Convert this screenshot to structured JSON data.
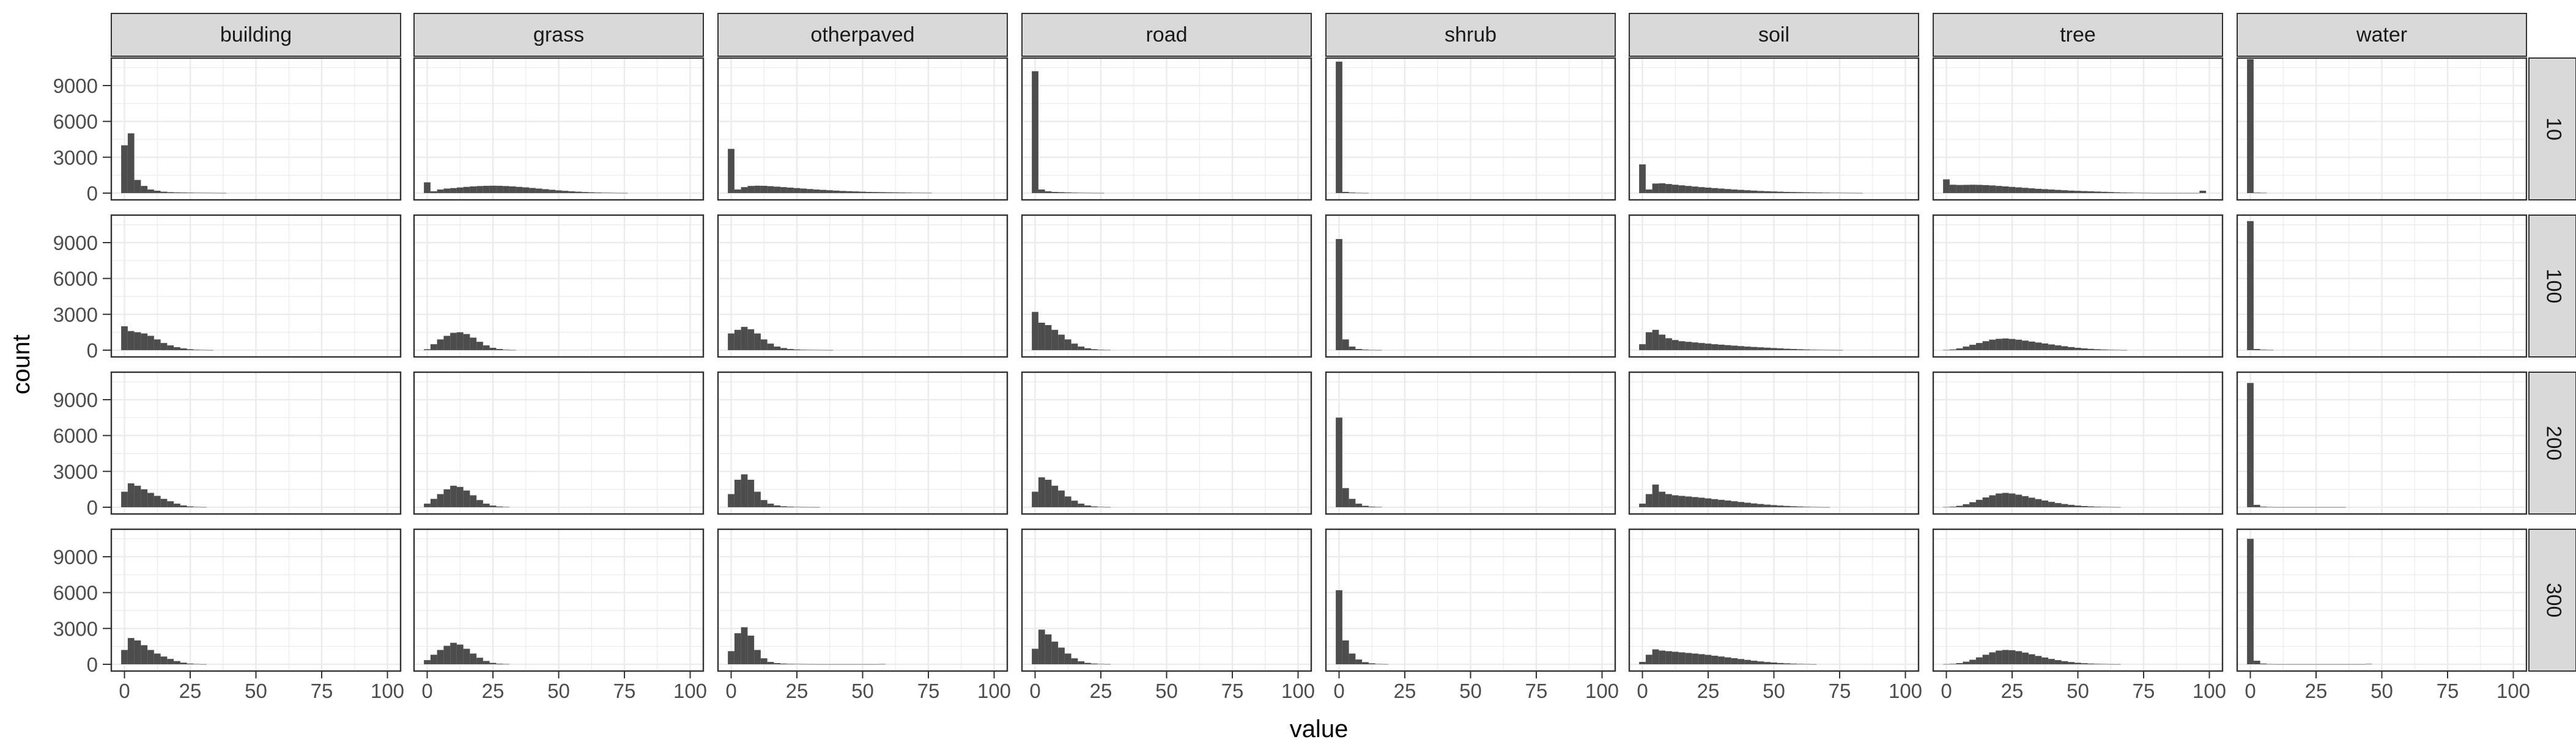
{
  "chart_data": {
    "type": "histogram-facet-grid",
    "xlabel": "value",
    "ylabel": "count",
    "xlim": [
      0,
      100
    ],
    "ylim": [
      0,
      11300
    ],
    "x_ticks": [
      0,
      25,
      50,
      75,
      100
    ],
    "y_ticks": [
      0,
      3000,
      6000,
      9000
    ],
    "bin_width": 2.5,
    "grid": true,
    "bar_color": "#4d4d4d",
    "strip_color": "#d9d9d9",
    "panel_grid_color": "#ebebeb",
    "columns": [
      "building",
      "grass",
      "otherpaved",
      "road",
      "shrub",
      "soil",
      "tree",
      "water"
    ],
    "rows": [
      "10",
      "100",
      "200",
      "300"
    ],
    "panels": {
      "10": {
        "building": [
          4000,
          5000,
          1100,
          600,
          300,
          200,
          120,
          80,
          60,
          50,
          40,
          30,
          25,
          20,
          15,
          10
        ],
        "grass": [
          900,
          150,
          300,
          380,
          420,
          470,
          520,
          560,
          590,
          610,
          620,
          610,
          590,
          560,
          520,
          480,
          430,
          380,
          330,
          280,
          230,
          190,
          150,
          120,
          90,
          70,
          50,
          35,
          25,
          15,
          10
        ],
        "otherpaved": [
          3700,
          300,
          500,
          600,
          620,
          610,
          580,
          540,
          500,
          460,
          420,
          380,
          340,
          300,
          270,
          240,
          210,
          180,
          160,
          140,
          120,
          100,
          90,
          80,
          70,
          60,
          50,
          40,
          30,
          25,
          20
        ],
        "road": [
          10200,
          300,
          150,
          100,
          80,
          60,
          40,
          30,
          20,
          15,
          10
        ],
        "shrub": [
          11000,
          100,
          50,
          20,
          10
        ],
        "soil": [
          2400,
          300,
          800,
          820,
          760,
          700,
          650,
          600,
          550,
          500,
          460,
          420,
          380,
          340,
          300,
          270,
          240,
          210,
          180,
          160,
          140,
          120,
          100,
          90,
          80,
          70,
          60,
          50,
          40,
          30,
          25,
          20,
          15,
          10
        ],
        "tree": [
          1150,
          700,
          680,
          690,
          700,
          690,
          670,
          640,
          600,
          560,
          520,
          480,
          440,
          400,
          360,
          330,
          300,
          270,
          240,
          210,
          190,
          170,
          150,
          130,
          110,
          90,
          70,
          50,
          40,
          30,
          20,
          15,
          10,
          10,
          10,
          10,
          10,
          10,
          10,
          200
        ],
        "water": [
          11200,
          40,
          20
        ]
      },
      "100": {
        "building": [
          2000,
          1600,
          1500,
          1400,
          1200,
          900,
          600,
          400,
          250,
          150,
          80,
          40,
          20,
          10
        ],
        "grass": [
          80,
          500,
          900,
          1200,
          1450,
          1500,
          1350,
          1050,
          700,
          400,
          200,
          100,
          40,
          15
        ],
        "otherpaved": [
          1400,
          1700,
          1950,
          1750,
          1400,
          900,
          550,
          300,
          180,
          100,
          60,
          40,
          30,
          20,
          15,
          10
        ],
        "road": [
          3200,
          2300,
          2100,
          1700,
          1300,
          900,
          550,
          300,
          160,
          80,
          40,
          20
        ],
        "shrub": [
          9300,
          900,
          300,
          100,
          50,
          20,
          10
        ],
        "soil": [
          500,
          1500,
          1700,
          1300,
          1000,
          850,
          750,
          700,
          650,
          600,
          550,
          500,
          460,
          420,
          380,
          340,
          300,
          270,
          240,
          210,
          180,
          150,
          120,
          100,
          80,
          60,
          40,
          30,
          20,
          15,
          10
        ],
        "tree": [
          20,
          60,
          150,
          300,
          450,
          600,
          750,
          880,
          950,
          980,
          940,
          880,
          800,
          720,
          640,
          560,
          480,
          400,
          330,
          260,
          200,
          150,
          110,
          80,
          55,
          35,
          20,
          10
        ],
        "water": [
          10800,
          100,
          40,
          20
        ]
      },
      "200": {
        "building": [
          1300,
          2000,
          1800,
          1500,
          1200,
          950,
          700,
          500,
          300,
          150,
          70,
          30,
          15
        ],
        "grass": [
          300,
          700,
          1100,
          1500,
          1800,
          1700,
          1400,
          1000,
          600,
          300,
          140,
          60,
          25
        ],
        "otherpaved": [
          1100,
          2300,
          2750,
          2300,
          1300,
          600,
          300,
          150,
          80,
          50,
          30,
          20,
          15,
          10
        ],
        "road": [
          1300,
          2500,
          2300,
          1800,
          1400,
          900,
          550,
          300,
          150,
          70,
          30,
          15
        ],
        "shrub": [
          7500,
          1600,
          700,
          300,
          120,
          50,
          20
        ],
        "soil": [
          300,
          1100,
          1900,
          1300,
          1100,
          1000,
          950,
          900,
          850,
          800,
          740,
          680,
          620,
          560,
          500,
          440,
          380,
          320,
          270,
          220,
          180,
          140,
          110,
          80,
          60,
          40,
          25,
          15,
          10
        ],
        "tree": [
          20,
          50,
          120,
          250,
          420,
          620,
          820,
          1000,
          1150,
          1200,
          1150,
          1050,
          930,
          800,
          680,
          560,
          450,
          350,
          270,
          200,
          140,
          100,
          70,
          45,
          30,
          20,
          10
        ],
        "water": [
          10400,
          200,
          50,
          20,
          10,
          10,
          10,
          10,
          10,
          10,
          10,
          10,
          10,
          10,
          10
        ]
      },
      "300": {
        "building": [
          1200,
          2200,
          2000,
          1600,
          1200,
          900,
          650,
          450,
          270,
          140,
          60,
          25,
          10
        ],
        "grass": [
          350,
          800,
          1200,
          1550,
          1800,
          1650,
          1300,
          900,
          550,
          280,
          120,
          50,
          20
        ],
        "otherpaved": [
          1100,
          2600,
          3100,
          2400,
          1200,
          500,
          200,
          100,
          60,
          40,
          30,
          20,
          15,
          10,
          10,
          10,
          10,
          10,
          10,
          10,
          10,
          10,
          10,
          20
        ],
        "road": [
          1300,
          2900,
          2500,
          1900,
          1400,
          900,
          500,
          250,
          120,
          60,
          30,
          15
        ],
        "shrub": [
          6200,
          2000,
          900,
          400,
          180,
          80,
          30,
          15
        ],
        "soil": [
          200,
          800,
          1250,
          1150,
          1100,
          1050,
          1000,
          950,
          900,
          850,
          790,
          720,
          650,
          580,
          510,
          440,
          370,
          300,
          240,
          190,
          150,
          110,
          80,
          55,
          35,
          20,
          10
        ],
        "tree": [
          15,
          40,
          100,
          220,
          380,
          580,
          800,
          1000,
          1150,
          1200,
          1180,
          1100,
          980,
          840,
          700,
          570,
          450,
          350,
          260,
          190,
          130,
          90,
          60,
          40,
          25,
          15,
          10
        ],
        "water": [
          10500,
          300,
          60,
          20,
          10,
          10,
          10,
          10,
          10,
          10,
          10,
          10,
          10,
          10,
          10,
          10,
          10,
          10,
          30
        ]
      }
    }
  }
}
